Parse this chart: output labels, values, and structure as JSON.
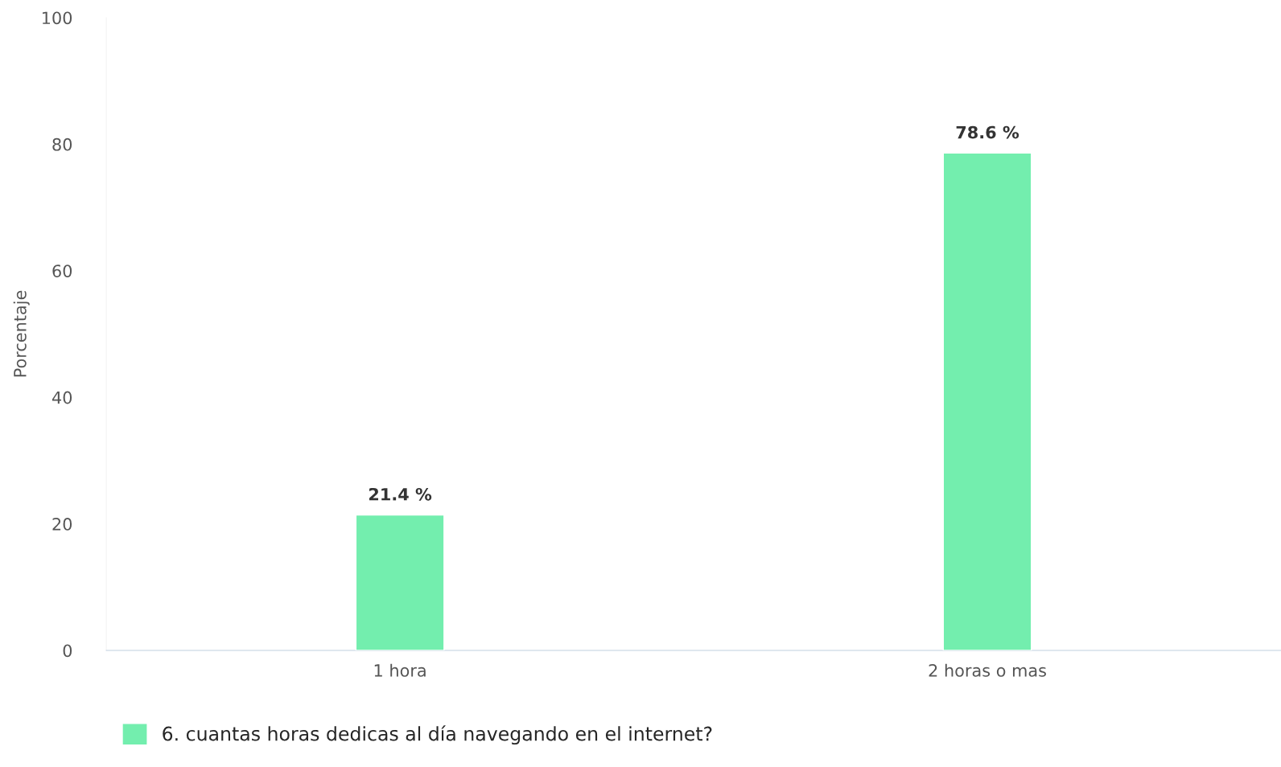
{
  "chart_data": {
    "type": "bar",
    "ylabel": "Porcentaje",
    "categories": [
      "1 hora",
      "2 horas o mas"
    ],
    "series": [
      {
        "name": "6. cuantas horas dedicas al día navegando en el internet?",
        "color": "#73eeae",
        "values": [
          21.4,
          78.6
        ],
        "value_labels": [
          "21.4 %",
          "78.6 %"
        ]
      }
    ],
    "ylim": [
      0,
      100
    ],
    "yticks": [
      0,
      20,
      40,
      60,
      80,
      100
    ],
    "legend": "bottom left"
  }
}
